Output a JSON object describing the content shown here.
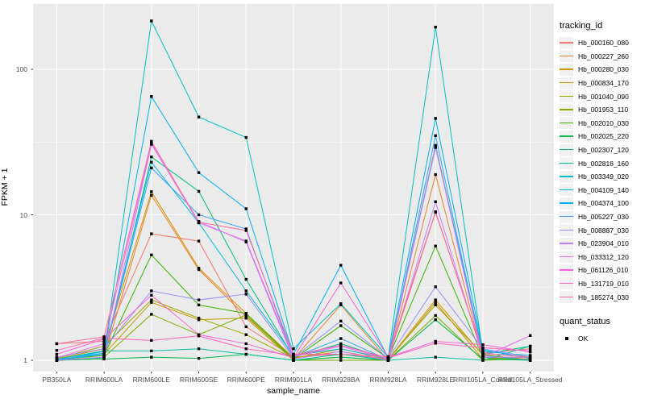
{
  "chart_data": {
    "type": "line",
    "title": "",
    "xlabel": "sample_name",
    "ylabel": "FPKM + 1",
    "y_scale": "log10",
    "ylim": [
      1,
      280
    ],
    "grid": true,
    "legend_position": "right",
    "panel_background": "#EBEBEB",
    "gridline_color": "#FFFFFF",
    "tick_label_color": "#4D4D4D",
    "point_color": "#000000",
    "point_shape": "square",
    "y_ticks": [
      {
        "value": 1,
        "label": "1"
      },
      {
        "value": 10,
        "label": "10"
      },
      {
        "value": 100,
        "label": "100"
      }
    ],
    "y_minor_gridlines": [
      3.162,
      31.62
    ],
    "legend": {
      "tracking_title": "tracking_id",
      "quant_title": "quant_status",
      "quant_items": [
        {
          "label": "OK",
          "marker": "black-square"
        }
      ]
    },
    "categories": [
      "PB350LA",
      "RRIM600LA",
      "RRIM600LE",
      "RRIM600SE",
      "RRIM600PE",
      "RRIM901LA",
      "RRIM928BA",
      "RRIM928LA",
      "RRIM928LE",
      "RRII105LA_Control",
      "RRII105LA_Stressed"
    ],
    "series": [
      {
        "name": "Hb_000160_080",
        "color": "#F8766D",
        "values": [
          1.3,
          1.35,
          7.4,
          6.6,
          1.7,
          1.05,
          1.1,
          1.02,
          10.4,
          1.12,
          1.2
        ]
      },
      {
        "name": "Hb_000227_260",
        "color": "#EA8331",
        "values": [
          1.0,
          1.05,
          13.6,
          4.2,
          2.0,
          1.02,
          2.4,
          1.0,
          18.9,
          1.05,
          1.02
        ]
      },
      {
        "name": "Hb_000280_030",
        "color": "#D89000",
        "values": [
          1.02,
          1.2,
          14.4,
          4.3,
          2.1,
          1.04,
          1.15,
          1.01,
          2.6,
          1.08,
          1.01
        ]
      },
      {
        "name": "Hb_000834_170",
        "color": "#C09B00",
        "values": [
          1.0,
          1.1,
          2.5,
          1.9,
          1.95,
          1.0,
          1.05,
          1.0,
          2.5,
          1.02,
          1.05
        ]
      },
      {
        "name": "Hb_001040_090",
        "color": "#A3A500",
        "values": [
          1.03,
          1.25,
          2.6,
          1.95,
          1.5,
          1.03,
          1.2,
          1.02,
          2.4,
          1.1,
          1.0
        ]
      },
      {
        "name": "Hb_001953_110",
        "color": "#7CAE00",
        "values": [
          1.0,
          1.05,
          2.07,
          1.5,
          2.05,
          1.0,
          1.0,
          1.0,
          2.03,
          1.0,
          1.02
        ]
      },
      {
        "name": "Hb_002010_030",
        "color": "#39B600",
        "values": [
          1.01,
          1.08,
          5.3,
          2.4,
          2.1,
          1.02,
          1.73,
          1.03,
          6.1,
          1.05,
          1.0
        ]
      },
      {
        "name": "Hb_002025_220",
        "color": "#00BB4E",
        "values": [
          1.0,
          1.02,
          1.05,
          1.03,
          1.1,
          1.0,
          1.05,
          1.0,
          1.9,
          1.02,
          1.0
        ]
      },
      {
        "name": "Hb_002307_120",
        "color": "#00BF7D",
        "values": [
          1.0,
          1.04,
          25.0,
          14.5,
          3.6,
          1.05,
          1.3,
          1.02,
          30.0,
          1.1,
          1.25
        ]
      },
      {
        "name": "Hb_002818_160",
        "color": "#00C1A3",
        "values": [
          1.02,
          1.16,
          1.16,
          1.2,
          1.1,
          1.0,
          1.1,
          1.0,
          1.05,
          1.0,
          1.25
        ]
      },
      {
        "name": "Hb_003349_020",
        "color": "#00BFC4",
        "values": [
          1.0,
          1.1,
          215.0,
          47.0,
          34.0,
          1.2,
          2.45,
          1.05,
          195.0,
          1.12,
          1.05
        ]
      },
      {
        "name": "Hb_004109_140",
        "color": "#00BAE0",
        "values": [
          1.01,
          1.12,
          23.0,
          8.8,
          3.0,
          1.08,
          1.2,
          1.02,
          29.0,
          1.15,
          1.08
        ]
      },
      {
        "name": "Hb_004374_100",
        "color": "#00B0F6",
        "values": [
          1.0,
          1.15,
          65.0,
          19.5,
          11.0,
          1.1,
          4.5,
          1.04,
          46.0,
          1.18,
          1.03
        ]
      },
      {
        "name": "Hb_005227_030",
        "color": "#35A2FF",
        "values": [
          1.02,
          1.1,
          21.0,
          10.0,
          8.0,
          1.05,
          1.41,
          1.01,
          35.0,
          1.08,
          1.0
        ]
      },
      {
        "name": "Hb_008887_030",
        "color": "#9590FF",
        "values": [
          1.05,
          1.2,
          3.0,
          2.6,
          2.85,
          1.04,
          1.86,
          1.03,
          3.2,
          1.2,
          1.05
        ]
      },
      {
        "name": "Hb_023904_010",
        "color": "#C77CFF",
        "values": [
          1.0,
          1.05,
          30.5,
          9.0,
          6.5,
          1.02,
          1.15,
          1.0,
          12.3,
          1.05,
          1.05
        ]
      },
      {
        "name": "Hb_033312_120",
        "color": "#E76BF3",
        "values": [
          1.04,
          1.3,
          31.0,
          8.8,
          6.6,
          1.06,
          1.25,
          1.02,
          29.5,
          1.05,
          1.48
        ]
      },
      {
        "name": "Hb_061126_010",
        "color": "#FA62DB",
        "values": [
          1.1,
          1.4,
          2.8,
          1.5,
          1.3,
          1.04,
          3.4,
          1.05,
          1.35,
          1.28,
          1.14
        ]
      },
      {
        "name": "Hb_131719_010",
        "color": "#FF62BC",
        "values": [
          1.17,
          1.42,
          1.37,
          1.47,
          1.2,
          1.08,
          1.27,
          1.04,
          1.31,
          1.22,
          1.16
        ]
      },
      {
        "name": "Hb_185274_030",
        "color": "#FF6A98",
        "values": [
          1.3,
          1.45,
          32.0,
          8.9,
          7.8,
          1.1,
          1.1,
          1.06,
          10.5,
          1.12,
          1.05
        ]
      }
    ]
  }
}
